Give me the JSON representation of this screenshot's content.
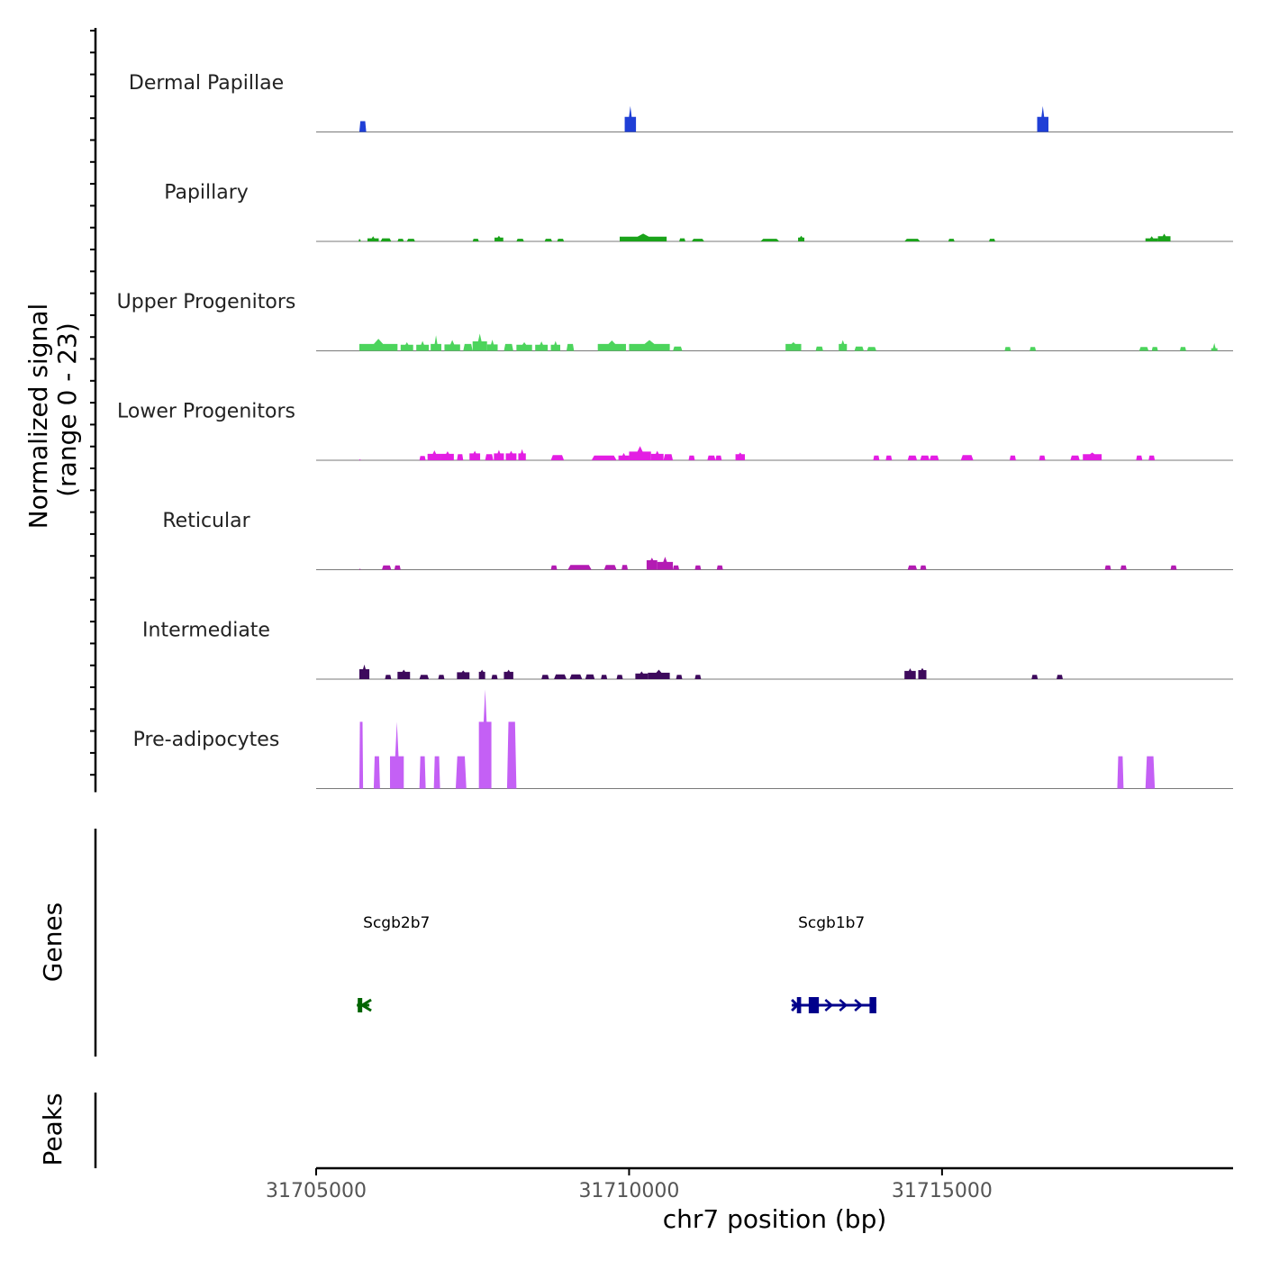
{
  "chart_data": {
    "type": "area",
    "title": "",
    "xlabel": "chr7 position (bp)",
    "ylabel": "Normalized signal",
    "ylabel_range": "(range 0 - 23)",
    "xlim": [
      31705000,
      31719650
    ],
    "ylim": [
      0,
      23
    ],
    "x_ticks": [
      31705000,
      31710000,
      31715000
    ],
    "x_tick_labels": [
      "31705000",
      "31710000",
      "31715000"
    ],
    "tracks": [
      {
        "name": "Dermal Papillae",
        "color": "#1f3fd6",
        "regions": [
          [
            31705690,
            31705800,
            2.5,
            null
          ],
          [
            31709930,
            31710110,
            3.5,
            6
          ],
          [
            31716520,
            31716700,
            3.5,
            6
          ]
        ]
      },
      {
        "name": "Papillary",
        "color": "#1aa31a",
        "regions": [
          [
            31705680,
            31705710,
            0.5,
            null
          ],
          [
            31705820,
            31706000,
            0.7,
            1.2
          ],
          [
            31706030,
            31706200,
            0.7,
            null
          ],
          [
            31706300,
            31706400,
            0.6,
            null
          ],
          [
            31706450,
            31706580,
            0.6,
            null
          ],
          [
            31707500,
            31707600,
            0.6,
            null
          ],
          [
            31707850,
            31707990,
            0.9,
            1.3
          ],
          [
            31708200,
            31708320,
            0.6,
            null
          ],
          [
            31708650,
            31708770,
            0.6,
            null
          ],
          [
            31708850,
            31708960,
            0.6,
            null
          ],
          [
            31709850,
            31710600,
            1.1,
            1.8
          ],
          [
            31710800,
            31710900,
            0.7,
            null
          ],
          [
            31711000,
            31711200,
            0.6,
            null
          ],
          [
            31712100,
            31712400,
            0.6,
            null
          ],
          [
            31712700,
            31712800,
            0.9,
            1.3
          ],
          [
            31714400,
            31714650,
            0.6,
            null
          ],
          [
            31715100,
            31715200,
            0.6,
            null
          ],
          [
            31715750,
            31715850,
            0.6,
            null
          ],
          [
            31718250,
            31718450,
            0.7,
            1.2
          ],
          [
            31718450,
            31718650,
            1.2,
            1.8
          ]
        ]
      },
      {
        "name": "Upper Progenitors",
        "color": "#4cd45c",
        "regions": [
          [
            31705690,
            31706300,
            1.6,
            2.8
          ],
          [
            31706350,
            31706550,
            1.4,
            2.0
          ],
          [
            31706600,
            31706800,
            1.4,
            2.3
          ],
          [
            31706830,
            31707000,
            1.6,
            3.6
          ],
          [
            31707050,
            31707300,
            1.5,
            2.5
          ],
          [
            31707350,
            31707500,
            1.6,
            null
          ],
          [
            31707500,
            31707730,
            2.2,
            4.0
          ],
          [
            31707730,
            31707900,
            1.5,
            2.6
          ],
          [
            31708000,
            31708150,
            1.6,
            null
          ],
          [
            31708200,
            31708450,
            1.4,
            2.0
          ],
          [
            31708500,
            31708700,
            1.4,
            2.2
          ],
          [
            31708750,
            31708900,
            1.4,
            2.3
          ],
          [
            31709000,
            31709120,
            1.6,
            null
          ],
          [
            31709500,
            31709950,
            1.6,
            2.4
          ],
          [
            31710000,
            31710650,
            1.6,
            2.5
          ],
          [
            31710700,
            31710850,
            1.0,
            null
          ],
          [
            31712500,
            31712750,
            1.6,
            2.0
          ],
          [
            31712980,
            31713100,
            1.0,
            null
          ],
          [
            31713350,
            31713480,
            1.6,
            2.5
          ],
          [
            31713600,
            31713750,
            1.0,
            null
          ],
          [
            31713800,
            31713950,
            0.9,
            null
          ],
          [
            31716000,
            31716100,
            0.9,
            null
          ],
          [
            31716400,
            31716500,
            0.9,
            null
          ],
          [
            31718150,
            31718300,
            0.9,
            null
          ],
          [
            31718350,
            31718450,
            0.9,
            null
          ],
          [
            31718800,
            31718900,
            0.9,
            null
          ],
          [
            31719300,
            31719400,
            0.6,
            1.8
          ]
        ]
      },
      {
        "name": "Lower Progenitors",
        "color": "#e31ee3",
        "regions": [
          [
            31705690,
            31705710,
            0.2,
            null
          ],
          [
            31706650,
            31706750,
            1.0,
            null
          ],
          [
            31706780,
            31707000,
            1.5,
            2.3
          ],
          [
            31707000,
            31707200,
            1.5,
            2.1
          ],
          [
            31707250,
            31707350,
            1.4,
            null
          ],
          [
            31707450,
            31707620,
            1.6,
            2.2
          ],
          [
            31707700,
            31707830,
            1.4,
            null
          ],
          [
            31707840,
            31708000,
            1.6,
            2.4
          ],
          [
            31708030,
            31708200,
            1.6,
            2.2
          ],
          [
            31708230,
            31708350,
            1.6,
            2.6
          ],
          [
            31708750,
            31708960,
            1.2,
            null
          ],
          [
            31709400,
            31709800,
            1.1,
            null
          ],
          [
            31709830,
            31710000,
            1.1,
            1.7
          ],
          [
            31710000,
            31710350,
            2.0,
            3.3
          ],
          [
            31710350,
            31710550,
            1.5,
            2.2
          ],
          [
            31710550,
            31710700,
            1.4,
            null
          ],
          [
            31710950,
            31711050,
            1.1,
            null
          ],
          [
            31711250,
            31711380,
            1.1,
            null
          ],
          [
            31711380,
            31711480,
            1.1,
            null
          ],
          [
            31711700,
            31711850,
            1.4,
            1.8
          ],
          [
            31713900,
            31714000,
            1.1,
            null
          ],
          [
            31714100,
            31714200,
            1.1,
            null
          ],
          [
            31714450,
            31714600,
            1.1,
            null
          ],
          [
            31714650,
            31714800,
            1.1,
            null
          ],
          [
            31714800,
            31714950,
            1.1,
            null
          ],
          [
            31715300,
            31715500,
            1.2,
            null
          ],
          [
            31716080,
            31716180,
            1.1,
            null
          ],
          [
            31716550,
            31716650,
            1.1,
            null
          ],
          [
            31717050,
            31717200,
            1.1,
            null
          ],
          [
            31717250,
            31717550,
            1.4,
            1.8
          ],
          [
            31718100,
            31718200,
            1.1,
            null
          ],
          [
            31718300,
            31718400,
            1.1,
            null
          ]
        ]
      },
      {
        "name": "Reticular",
        "color": "#b31bb3",
        "regions": [
          [
            31705690,
            31705710,
            0.2,
            null
          ],
          [
            31706050,
            31706200,
            1.0,
            null
          ],
          [
            31706250,
            31706350,
            1.0,
            null
          ],
          [
            31708750,
            31708850,
            1.0,
            null
          ],
          [
            31709020,
            31709400,
            1.1,
            null
          ],
          [
            31709600,
            31709800,
            1.1,
            null
          ],
          [
            31709880,
            31709980,
            1.1,
            null
          ],
          [
            31710280,
            31710450,
            2.2,
            2.8
          ],
          [
            31710450,
            31710700,
            1.8,
            3.0
          ],
          [
            31710700,
            31710800,
            1.0,
            null
          ],
          [
            31711050,
            31711150,
            1.0,
            null
          ],
          [
            31711400,
            31711500,
            1.0,
            null
          ],
          [
            31714450,
            31714600,
            1.0,
            null
          ],
          [
            31714650,
            31714750,
            1.0,
            null
          ],
          [
            31717600,
            31717700,
            1.0,
            null
          ],
          [
            31717850,
            31717950,
            1.0,
            null
          ],
          [
            31718650,
            31718750,
            1.0,
            null
          ]
        ]
      },
      {
        "name": "Intermediate",
        "color": "#3d0a5c",
        "regions": [
          [
            31705690,
            31705850,
            2.3,
            3.4
          ],
          [
            31706100,
            31706200,
            1.0,
            null
          ],
          [
            31706300,
            31706500,
            1.7,
            2.2
          ],
          [
            31706650,
            31706800,
            1.0,
            null
          ],
          [
            31706950,
            31707050,
            1.0,
            null
          ],
          [
            31707250,
            31707450,
            1.6,
            2.0
          ],
          [
            31707600,
            31707700,
            1.7,
            2.2
          ],
          [
            31707800,
            31707900,
            1.0,
            null
          ],
          [
            31708000,
            31708150,
            1.7,
            2.2
          ],
          [
            31708600,
            31708720,
            1.0,
            null
          ],
          [
            31708800,
            31709000,
            1.1,
            null
          ],
          [
            31709050,
            31709250,
            1.1,
            null
          ],
          [
            31709300,
            31709450,
            1.1,
            null
          ],
          [
            31709550,
            31709650,
            1.0,
            null
          ],
          [
            31709800,
            31709900,
            1.0,
            null
          ],
          [
            31710100,
            31710300,
            1.3,
            1.8
          ],
          [
            31710300,
            31710650,
            1.5,
            2.2
          ],
          [
            31710750,
            31710850,
            1.0,
            null
          ],
          [
            31711050,
            31711150,
            1.0,
            null
          ],
          [
            31714400,
            31714580,
            1.9,
            2.5
          ],
          [
            31714620,
            31714750,
            2.1,
            2.6
          ],
          [
            31716430,
            31716530,
            1.0,
            null
          ],
          [
            31716830,
            31716930,
            1.0,
            null
          ]
        ]
      },
      {
        "name": "Pre-adipocytes",
        "color": "#c460f5",
        "regions": [
          [
            31705690,
            31705750,
            15.5,
            null
          ],
          [
            31705920,
            31706020,
            7.5,
            null
          ],
          [
            31706180,
            31706400,
            7.5,
            15.5
          ],
          [
            31706650,
            31706750,
            7.5,
            null
          ],
          [
            31706880,
            31706980,
            7.5,
            null
          ],
          [
            31707230,
            31707400,
            7.5,
            null
          ],
          [
            31707600,
            31707800,
            15.5,
            23
          ],
          [
            31708050,
            31708200,
            15.5,
            null
          ],
          [
            31717800,
            31717900,
            7.5,
            null
          ],
          [
            31718250,
            31718400,
            7.5,
            null
          ]
        ]
      }
    ],
    "genes_track_label": "Genes",
    "peaks_track_label": "Peaks",
    "genes": [
      {
        "name": "Scgb2b7",
        "start": 31705650,
        "end": 31705850,
        "color": "#006400"
      },
      {
        "name": "Scgb1b7",
        "start": 31712600,
        "end": 31713950,
        "color": "#00008b"
      }
    ]
  }
}
